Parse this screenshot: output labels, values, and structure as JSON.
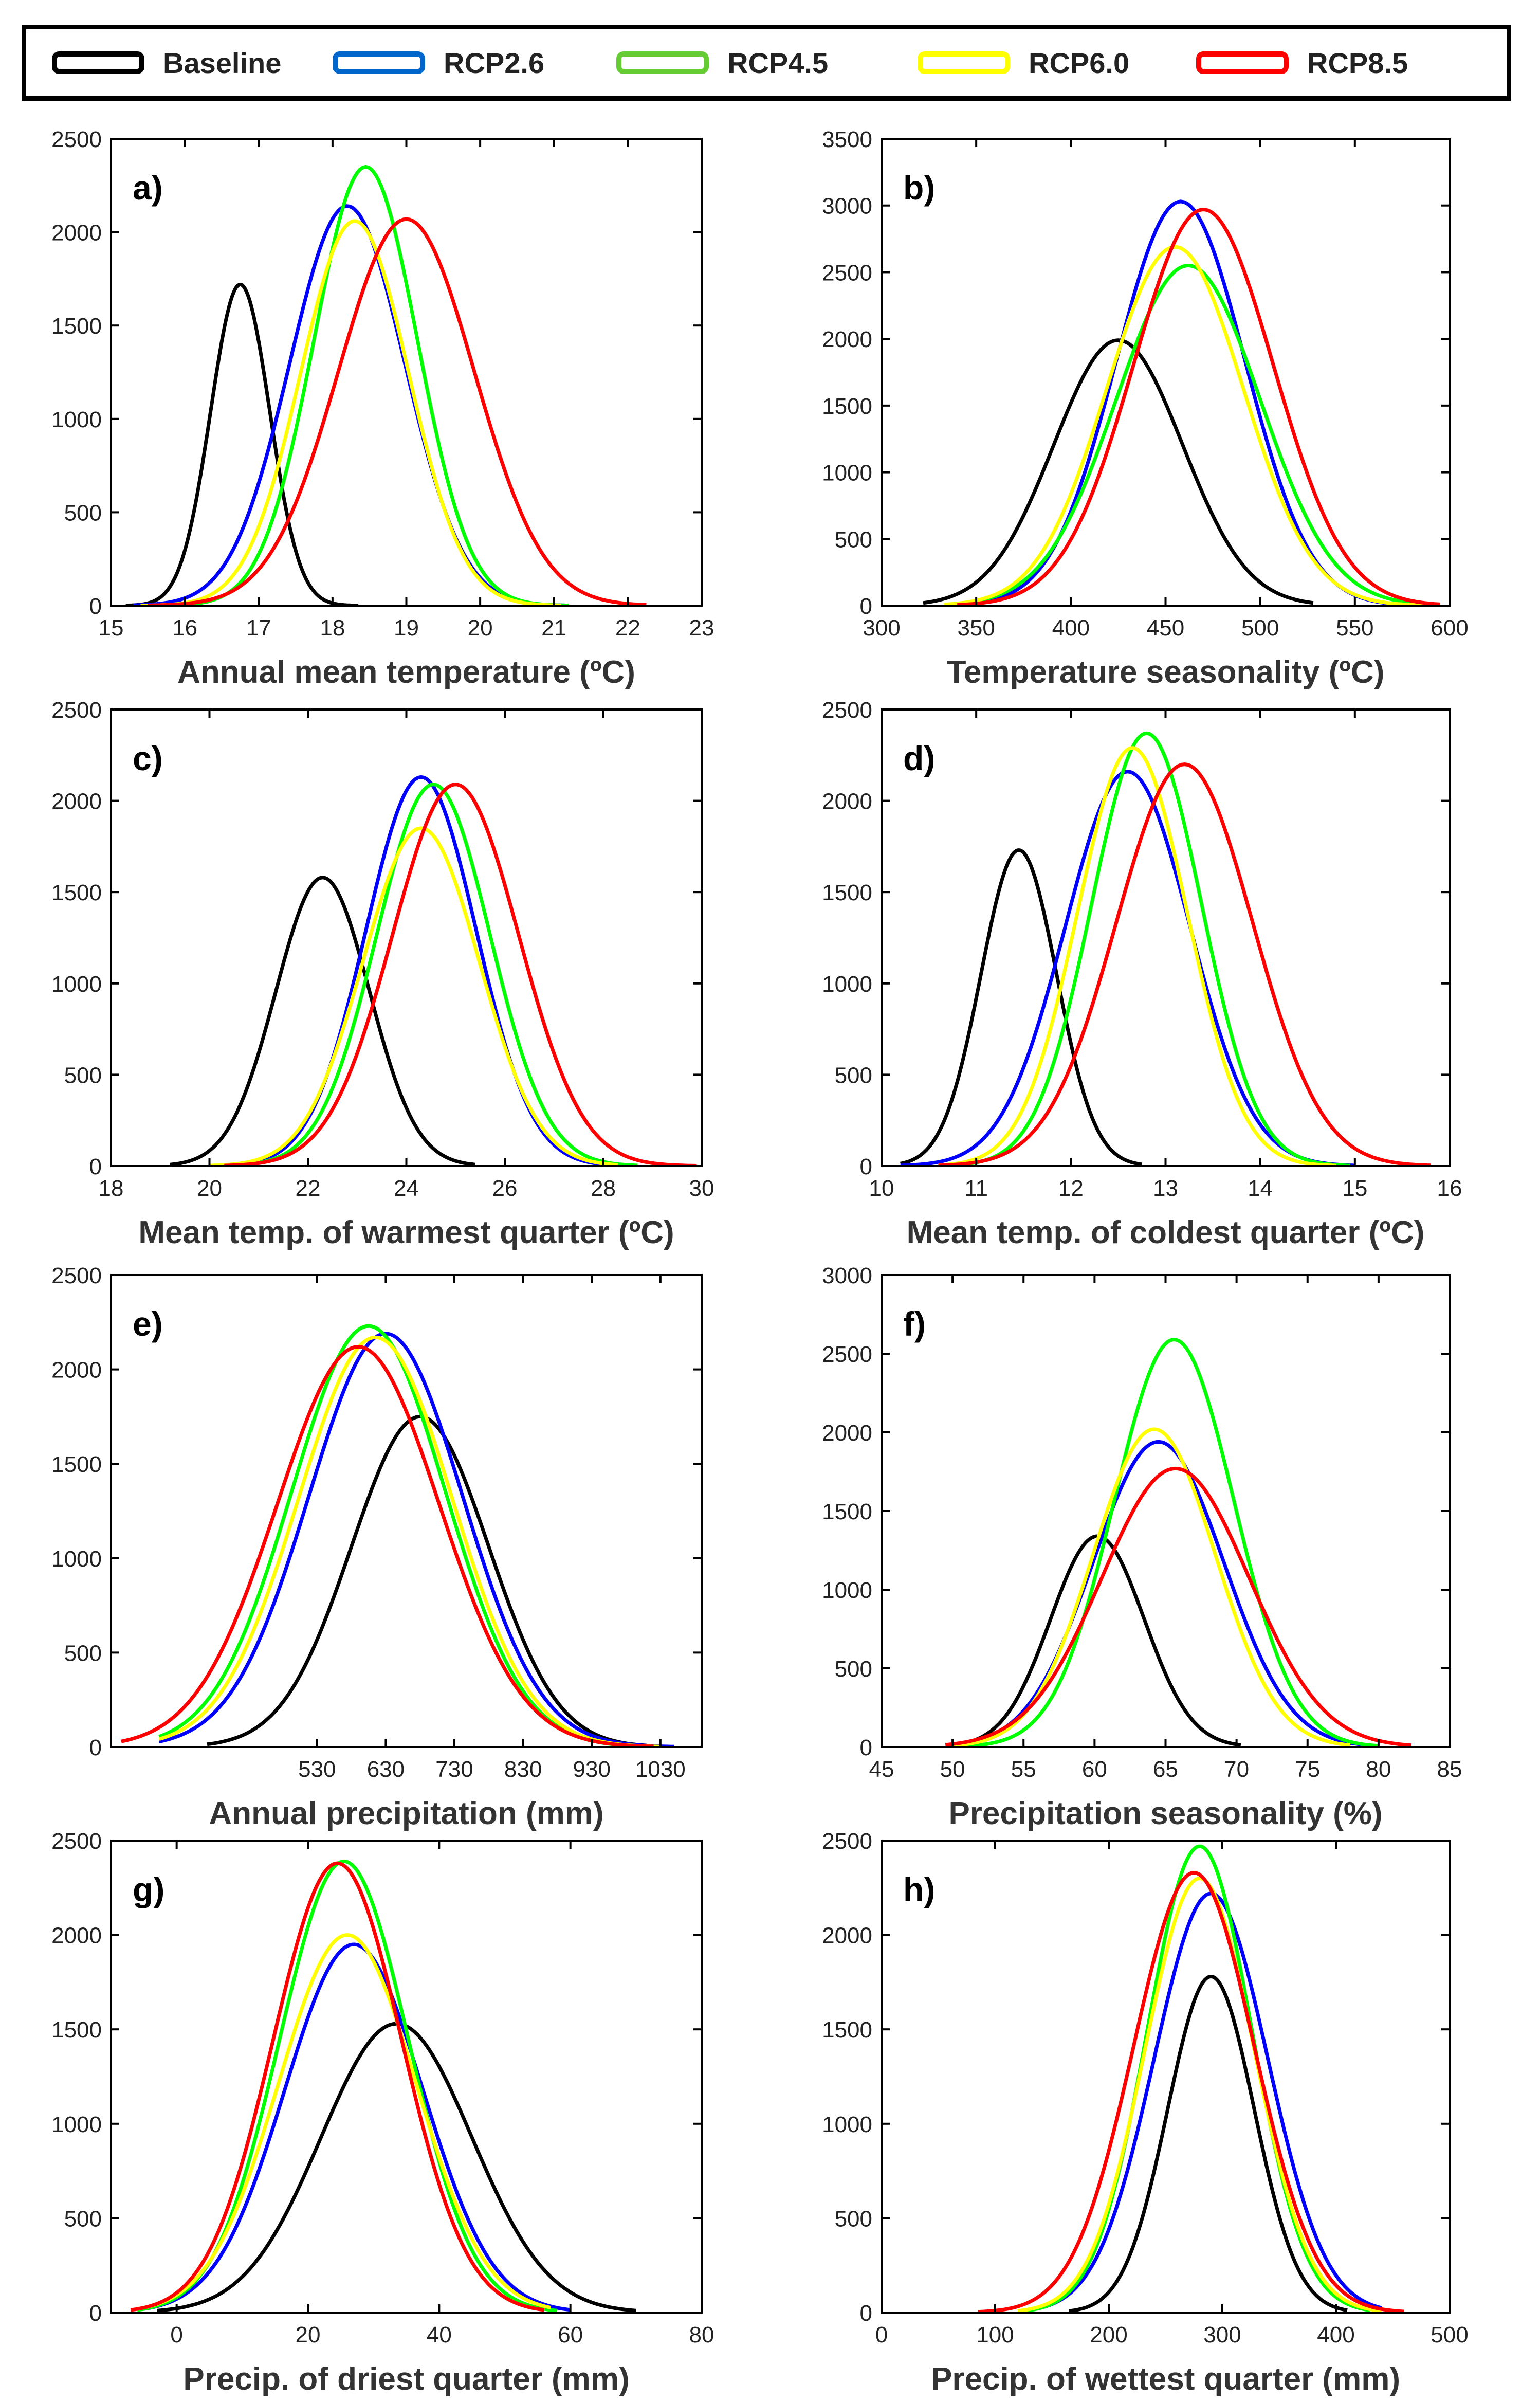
{
  "legend": [
    {
      "label": "Baseline",
      "color": "#000000"
    },
    {
      "label": "RCP2.6",
      "color": "#0066cc"
    },
    {
      "label": "RCP4.5",
      "color": "#66cc33"
    },
    {
      "label": "RCP6.0",
      "color": "#ffff00"
    },
    {
      "label": "RCP8.5",
      "color": "#ff0000"
    }
  ],
  "series_colors": {
    "Baseline": "#000000",
    "RCP2.6": "#0000ff",
    "RCP4.5": "#00ff00",
    "RCP6.0": "#ffff00",
    "RCP8.5": "#ff0000"
  },
  "chart_data": [
    {
      "type": "line",
      "panel": "a)",
      "xlabel": "Annual mean temperature (ºC)",
      "ylabel": "",
      "xlim": [
        15,
        23
      ],
      "ylim": [
        0,
        2500
      ],
      "xticks": [
        15,
        16,
        17,
        18,
        19,
        20,
        21,
        22,
        23
      ],
      "xtick_labels": [
        "15",
        "16",
        "17",
        "18",
        "19",
        "20",
        "21",
        "22",
        "23"
      ],
      "yticks": [
        0,
        500,
        1000,
        1500,
        2000,
        2500
      ],
      "series": [
        {
          "name": "Baseline",
          "peak_x": 16.75,
          "peak_y": 1720,
          "sd": 0.4,
          "x_range": [
            15.2,
            18.35
          ]
        },
        {
          "name": "RCP2.6",
          "peak_x": 18.2,
          "peak_y": 2140,
          "sd": 0.78,
          "x_range": [
            15.3,
            21.15
          ]
        },
        {
          "name": "RCP4.5",
          "peak_x": 18.45,
          "peak_y": 2350,
          "sd": 0.7,
          "x_range": [
            15.4,
            21.2
          ]
        },
        {
          "name": "RCP6.0",
          "peak_x": 18.3,
          "peak_y": 2060,
          "sd": 0.73,
          "x_range": [
            15.4,
            21.1
          ]
        },
        {
          "name": "RCP8.5",
          "peak_x": 19.0,
          "peak_y": 2070,
          "sd": 0.92,
          "x_range": [
            15.5,
            22.25
          ]
        }
      ]
    },
    {
      "type": "line",
      "panel": "b)",
      "xlabel": "Temperature seasonality  (ºC)",
      "ylabel": "",
      "xlim": [
        300,
        600
      ],
      "ylim": [
        0,
        3500
      ],
      "xticks": [
        300,
        350,
        400,
        450,
        500,
        550,
        600
      ],
      "xtick_labels": [
        "300",
        "350",
        "400",
        "450",
        "500",
        "550",
        "600"
      ],
      "yticks": [
        0,
        500,
        1000,
        1500,
        2000,
        2500,
        3000,
        3500
      ],
      "series": [
        {
          "name": "Baseline",
          "peak_x": 425,
          "peak_y": 1990,
          "sd": 34,
          "x_range": [
            322,
            528
          ]
        },
        {
          "name": "RCP2.6",
          "peak_x": 458,
          "peak_y": 3030,
          "sd": 34,
          "x_range": [
            333,
            593
          ]
        },
        {
          "name": "RCP4.5",
          "peak_x": 462,
          "peak_y": 2550,
          "sd": 38,
          "x_range": [
            333,
            592
          ]
        },
        {
          "name": "RCP6.0",
          "peak_x": 455,
          "peak_y": 2690,
          "sd": 36,
          "x_range": [
            333,
            590
          ]
        },
        {
          "name": "RCP8.5",
          "peak_x": 470,
          "peak_y": 2970,
          "sd": 37,
          "x_range": [
            340,
            595
          ]
        }
      ]
    },
    {
      "type": "line",
      "panel": "c)",
      "xlabel": "Mean temp. of warmest quarter (ºC)",
      "ylabel": "",
      "xlim": [
        18,
        30
      ],
      "ylim": [
        0,
        2500
      ],
      "xticks": [
        18,
        20,
        22,
        24,
        26,
        28,
        30
      ],
      "xtick_labels": [
        "18",
        "20",
        "22",
        "24",
        "26",
        "28",
        "30"
      ],
      "yticks": [
        0,
        500,
        1000,
        1500,
        2000,
        2500
      ],
      "series": [
        {
          "name": "Baseline",
          "peak_x": 22.3,
          "peak_y": 1580,
          "sd": 0.95,
          "x_range": [
            19.2,
            25.4
          ]
        },
        {
          "name": "RCP2.6",
          "peak_x": 24.3,
          "peak_y": 2130,
          "sd": 1.12,
          "x_range": [
            20.0,
            28.6
          ]
        },
        {
          "name": "RCP4.5",
          "peak_x": 24.55,
          "peak_y": 2090,
          "sd": 1.15,
          "x_range": [
            20.0,
            28.7
          ]
        },
        {
          "name": "RCP6.0",
          "peak_x": 24.3,
          "peak_y": 1850,
          "sd": 1.18,
          "x_range": [
            20.0,
            28.3
          ]
        },
        {
          "name": "RCP8.5",
          "peak_x": 25.0,
          "peak_y": 2090,
          "sd": 1.28,
          "x_range": [
            20.3,
            29.9
          ]
        }
      ]
    },
    {
      "type": "line",
      "panel": "d)",
      "xlabel": "Mean temp. of coldest quarter (ºC)",
      "ylabel": "",
      "xlim": [
        10,
        16
      ],
      "ylim": [
        0,
        2500
      ],
      "xticks": [
        10,
        11,
        12,
        13,
        14,
        15,
        16
      ],
      "xtick_labels": [
        "10",
        "11",
        "12",
        "13",
        "14",
        "15",
        "16"
      ],
      "yticks": [
        0,
        500,
        1000,
        1500,
        2000,
        2500
      ],
      "series": [
        {
          "name": "Baseline",
          "peak_x": 11.45,
          "peak_y": 1730,
          "sd": 0.4,
          "x_range": [
            10.2,
            12.75
          ]
        },
        {
          "name": "RCP2.6",
          "peak_x": 12.6,
          "peak_y": 2160,
          "sd": 0.66,
          "x_range": [
            10.2,
            15.0
          ]
        },
        {
          "name": "RCP4.5",
          "peak_x": 12.8,
          "peak_y": 2370,
          "sd": 0.58,
          "x_range": [
            10.6,
            14.95
          ]
        },
        {
          "name": "RCP6.0",
          "peak_x": 12.65,
          "peak_y": 2290,
          "sd": 0.58,
          "x_range": [
            10.6,
            14.8
          ]
        },
        {
          "name": "RCP8.5",
          "peak_x": 13.2,
          "peak_y": 2200,
          "sd": 0.72,
          "x_range": [
            10.6,
            15.8
          ]
        }
      ]
    },
    {
      "type": "line",
      "panel": "e)",
      "xlabel": "Annual precipitation  (mm)",
      "ylabel": "",
      "xlim": [
        230,
        1090
      ],
      "ylim": [
        0,
        2500
      ],
      "xticks": [
        530,
        630,
        730,
        830,
        930,
        1030
      ],
      "xtick_labels": [
        "530",
        "630",
        "730",
        "830",
        "930",
        "1030"
      ],
      "yticks": [
        0,
        500,
        1000,
        1500,
        2000,
        2500
      ],
      "series": [
        {
          "name": "Baseline",
          "peak_x": 680,
          "peak_y": 1750,
          "sd": 100,
          "x_range": [
            370,
            1010
          ]
        },
        {
          "name": "RCP2.6",
          "peak_x": 630,
          "peak_y": 2190,
          "sd": 112,
          "x_range": [
            300,
            1050
          ]
        },
        {
          "name": "RCP4.5",
          "peak_x": 605,
          "peak_y": 2230,
          "sd": 112,
          "x_range": [
            300,
            1020
          ]
        },
        {
          "name": "RCP6.0",
          "peak_x": 615,
          "peak_y": 2170,
          "sd": 112,
          "x_range": [
            300,
            1030
          ]
        },
        {
          "name": "RCP8.5",
          "peak_x": 590,
          "peak_y": 2120,
          "sd": 118,
          "x_range": [
            245,
            1020
          ]
        }
      ]
    },
    {
      "type": "line",
      "panel": "f)",
      "xlabel": "Precipitation seasonality  (%)",
      "ylabel": "",
      "xlim": [
        45,
        85
      ],
      "ylim": [
        0,
        3000
      ],
      "xticks": [
        45,
        50,
        55,
        60,
        65,
        70,
        75,
        80,
        85
      ],
      "xtick_labels": [
        "45",
        "50",
        "55",
        "60",
        "65",
        "70",
        "75",
        "80",
        "85"
      ],
      "yticks": [
        0,
        500,
        1000,
        1500,
        2000,
        2500,
        3000
      ],
      "series": [
        {
          "name": "Baseline",
          "peak_x": 60.2,
          "peak_y": 1340,
          "sd": 3.3,
          "x_range": [
            50.0,
            70.3
          ]
        },
        {
          "name": "RCP2.6",
          "peak_x": 64.5,
          "peak_y": 1940,
          "sd": 4.6,
          "x_range": [
            49.5,
            80.0
          ]
        },
        {
          "name": "RCP4.5",
          "peak_x": 65.6,
          "peak_y": 2590,
          "sd": 4.2,
          "x_range": [
            49.5,
            80.0
          ]
        },
        {
          "name": "RCP6.0",
          "peak_x": 64.2,
          "peak_y": 2020,
          "sd": 4.3,
          "x_range": [
            49.5,
            78.0
          ]
        },
        {
          "name": "RCP8.5",
          "peak_x": 65.7,
          "peak_y": 1770,
          "sd": 5.2,
          "x_range": [
            49.5,
            82.3
          ]
        }
      ]
    },
    {
      "type": "line",
      "panel": "g)",
      "xlabel": "Precip. of driest quarter (mm)",
      "ylabel": "",
      "xlim": [
        -10,
        80
      ],
      "ylim": [
        0,
        2500
      ],
      "xticks": [
        0,
        20,
        40,
        60,
        80
      ],
      "xtick_labels": [
        "0",
        "20",
        "40",
        "60",
        "80"
      ],
      "yticks": [
        0,
        500,
        1000,
        1500,
        2000,
        2500
      ],
      "series": [
        {
          "name": "Baseline",
          "peak_x": 33.5,
          "peak_y": 1530,
          "sd": 11.5,
          "x_range": [
            -3,
            70
          ]
        },
        {
          "name": "RCP2.6",
          "peak_x": 27,
          "peak_y": 1950,
          "sd": 10.5,
          "x_range": [
            -5,
            60
          ]
        },
        {
          "name": "RCP4.5",
          "peak_x": 25.5,
          "peak_y": 2390,
          "sd": 9.8,
          "x_range": [
            -6,
            58
          ]
        },
        {
          "name": "RCP6.0",
          "peak_x": 26,
          "peak_y": 2000,
          "sd": 10.5,
          "x_range": [
            -6,
            57
          ]
        },
        {
          "name": "RCP8.5",
          "peak_x": 24.5,
          "peak_y": 2380,
          "sd": 9.8,
          "x_range": [
            -7,
            56
          ]
        }
      ]
    },
    {
      "type": "line",
      "panel": "h)",
      "xlabel": "Precip. of wettest quarter (mm)",
      "ylabel": "",
      "xlim": [
        0,
        500
      ],
      "ylim": [
        0,
        2500
      ],
      "xticks": [
        0,
        100,
        200,
        300,
        400,
        500
      ],
      "xtick_labels": [
        "0",
        "100",
        "200",
        "300",
        "400",
        "500"
      ],
      "yticks": [
        0,
        500,
        1000,
        1500,
        2000,
        2500
      ],
      "series": [
        {
          "name": "Baseline",
          "peak_x": 290,
          "peak_y": 1780,
          "sd": 38,
          "x_range": [
            165,
            410
          ]
        },
        {
          "name": "RCP2.6",
          "peak_x": 290,
          "peak_y": 2220,
          "sd": 50,
          "x_range": [
            120,
            440
          ]
        },
        {
          "name": "RCP4.5",
          "peak_x": 280,
          "peak_y": 2470,
          "sd": 46,
          "x_range": [
            120,
            430
          ]
        },
        {
          "name": "RCP6.0",
          "peak_x": 280,
          "peak_y": 2300,
          "sd": 48,
          "x_range": [
            120,
            440
          ]
        },
        {
          "name": "RCP8.5",
          "peak_x": 275,
          "peak_y": 2330,
          "sd": 53,
          "x_range": [
            85,
            460
          ]
        }
      ]
    }
  ]
}
